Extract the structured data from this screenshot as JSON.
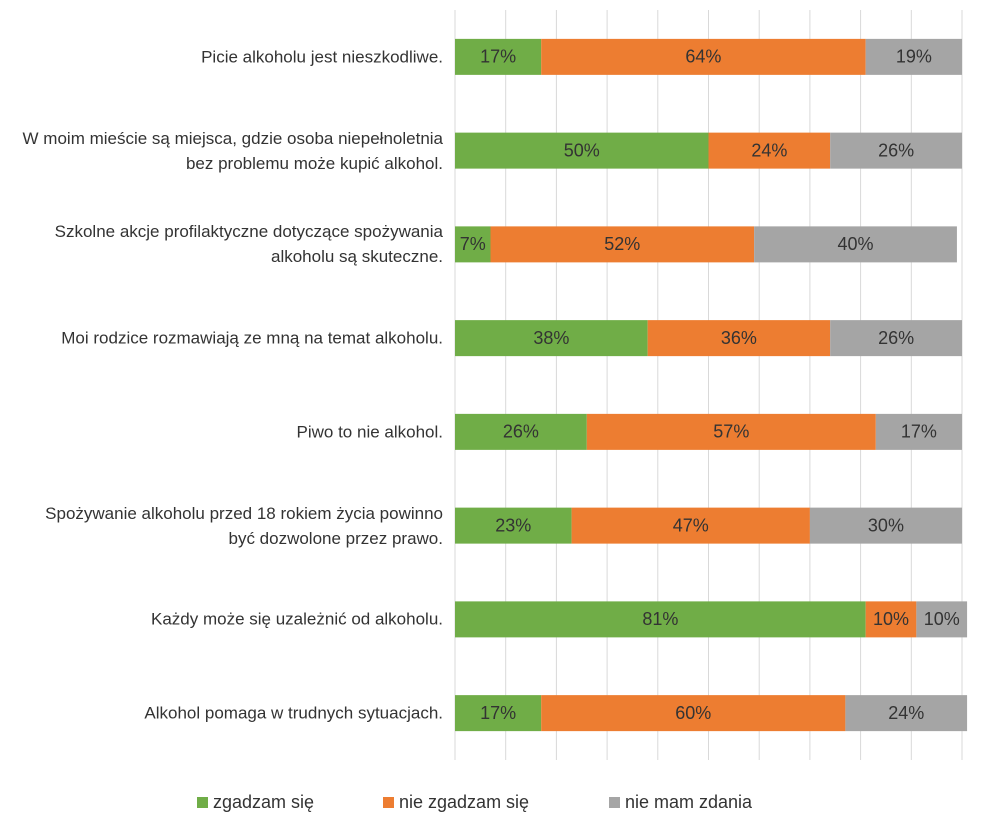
{
  "chart_data": {
    "type": "stacked_barh",
    "categories": [
      "Picie alkoholu jest nieszkodliwe.",
      "W moim mieście są miejsca, gdzie osoba niepełnoletnia bez problemu może kupić alkohol.",
      "Szkolne akcje profilaktyczne dotyczące spożywania alkoholu są skuteczne.",
      "Moi rodzice rozmawiają ze mną na temat alkoholu.",
      "Piwo to nie alkohol.",
      "Spożywanie alkoholu przed 18 rokiem życia powinno być dozwolone przez prawo.",
      "Każdy może się uzależnić od alkoholu.",
      "Alkohol pomaga w trudnych sytuacjach."
    ],
    "series": [
      {
        "name": "zgadzam się",
        "color": "#70ad47",
        "values": [
          17,
          50,
          7,
          38,
          26,
          23,
          81,
          17
        ],
        "value_labels": [
          "17%",
          "50%",
          "7%",
          "38%",
          "26%",
          "23%",
          "81%",
          "17%"
        ]
      },
      {
        "name": "nie zgadzam się",
        "color": "#ed7d31",
        "values": [
          64,
          24,
          52,
          36,
          57,
          47,
          10,
          60
        ],
        "value_labels": [
          "64%",
          "24%",
          "52%",
          "36%",
          "57%",
          "47%",
          "10%",
          "60%"
        ]
      },
      {
        "name": "nie mam zdania",
        "color": "#a5a5a5",
        "values": [
          19,
          26,
          40,
          26,
          17,
          30,
          10,
          24
        ],
        "value_labels": [
          "19%",
          "26%",
          "40%",
          "26%",
          "17%",
          "30%",
          "10%",
          "24%"
        ]
      }
    ],
    "xlim": [
      0,
      100
    ],
    "xticks": [
      0,
      10,
      20,
      30,
      40,
      50,
      60,
      70,
      80,
      90,
      100
    ],
    "grid": true,
    "legend": "bottom"
  }
}
